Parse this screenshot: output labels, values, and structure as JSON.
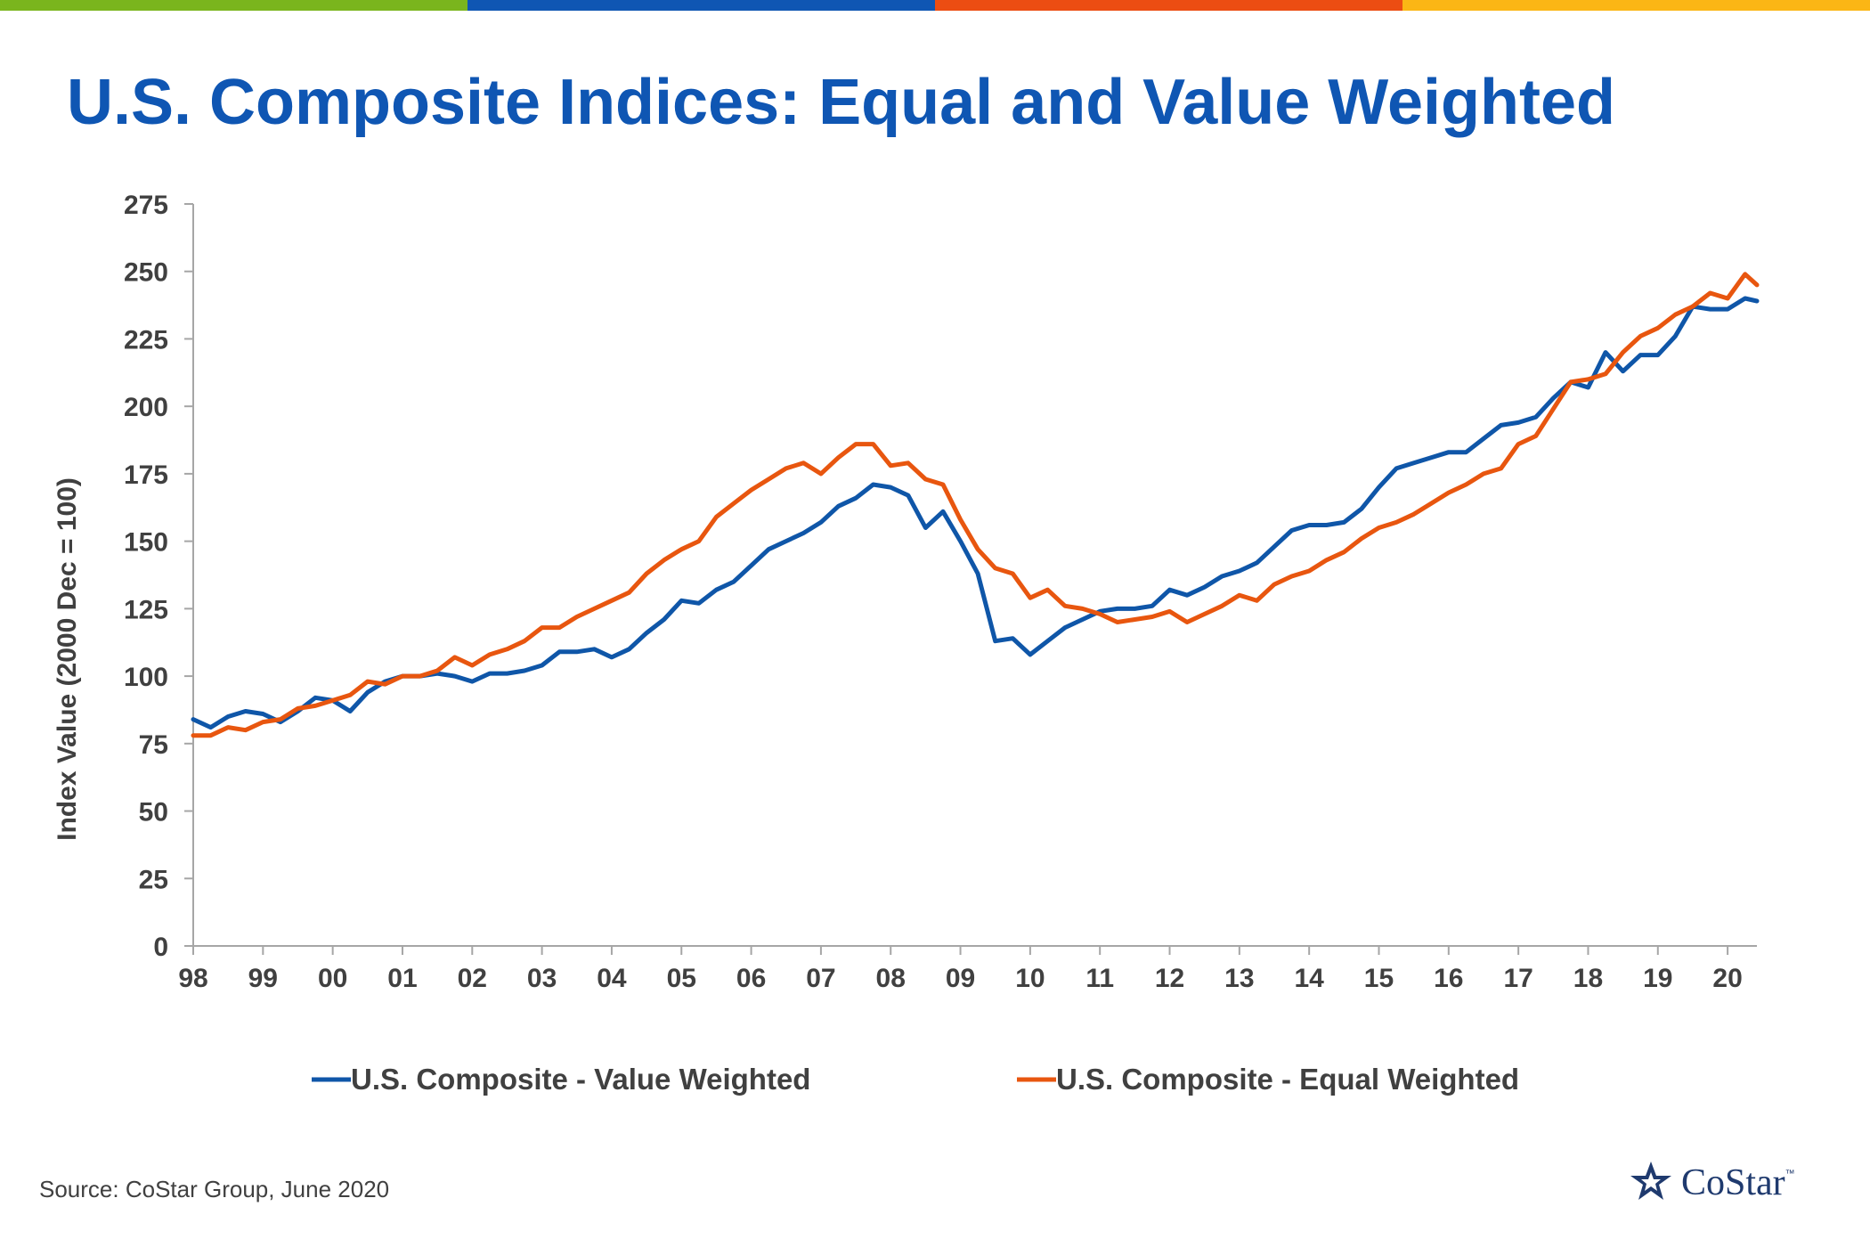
{
  "title": "U.S. Composite Indices: Equal and Value Weighted",
  "source": "Source: CoStar Group, June 2020",
  "logo": {
    "text": "CoStar",
    "tm": "™",
    "icon": "costar-star-icon"
  },
  "colors": {
    "title": "#0f56b3",
    "value_weighted": "#0f56a8",
    "equal_weighted": "#e8560f",
    "top_bar": [
      "#7ab51d",
      "#0f56b3",
      "#ec4d12",
      "#fbb615"
    ]
  },
  "chart_data": {
    "type": "line",
    "ylabel": "Index Value (2000 Dec = 100)",
    "ylim": [
      0,
      275
    ],
    "yticks": [
      0,
      25,
      50,
      75,
      100,
      125,
      150,
      175,
      200,
      225,
      250,
      275
    ],
    "xlim": [
      1998.0,
      2020.42
    ],
    "xticks": [
      {
        "x": 1998,
        "label": "98"
      },
      {
        "x": 1999,
        "label": "99"
      },
      {
        "x": 2000,
        "label": "00"
      },
      {
        "x": 2001,
        "label": "01"
      },
      {
        "x": 2002,
        "label": "02"
      },
      {
        "x": 2003,
        "label": "03"
      },
      {
        "x": 2004,
        "label": "04"
      },
      {
        "x": 2005,
        "label": "05"
      },
      {
        "x": 2006,
        "label": "06"
      },
      {
        "x": 2007,
        "label": "07"
      },
      {
        "x": 2008,
        "label": "08"
      },
      {
        "x": 2009,
        "label": "09"
      },
      {
        "x": 2010,
        "label": "10"
      },
      {
        "x": 2011,
        "label": "11"
      },
      {
        "x": 2012,
        "label": "12"
      },
      {
        "x": 2013,
        "label": "13"
      },
      {
        "x": 2014,
        "label": "14"
      },
      {
        "x": 2015,
        "label": "15"
      },
      {
        "x": 2016,
        "label": "16"
      },
      {
        "x": 2017,
        "label": "17"
      },
      {
        "x": 2018,
        "label": "18"
      },
      {
        "x": 2019,
        "label": "19"
      },
      {
        "x": 2020,
        "label": "20"
      }
    ],
    "grid": false,
    "legend_position": "bottom",
    "series": [
      {
        "name": "U.S. Composite - Value Weighted",
        "color": "#0f56a8",
        "points": [
          [
            1998.0,
            84
          ],
          [
            1998.25,
            81
          ],
          [
            1998.5,
            85
          ],
          [
            1998.75,
            87
          ],
          [
            1999.0,
            86
          ],
          [
            1999.25,
            83
          ],
          [
            1999.5,
            87
          ],
          [
            1999.75,
            92
          ],
          [
            2000.0,
            91
          ],
          [
            2000.25,
            87
          ],
          [
            2000.5,
            94
          ],
          [
            2000.75,
            98
          ],
          [
            2001.0,
            100
          ],
          [
            2001.25,
            100
          ],
          [
            2001.5,
            101
          ],
          [
            2001.75,
            100
          ],
          [
            2002.0,
            98
          ],
          [
            2002.25,
            101
          ],
          [
            2002.5,
            101
          ],
          [
            2002.75,
            102
          ],
          [
            2003.0,
            104
          ],
          [
            2003.25,
            109
          ],
          [
            2003.5,
            109
          ],
          [
            2003.75,
            110
          ],
          [
            2004.0,
            107
          ],
          [
            2004.25,
            110
          ],
          [
            2004.5,
            116
          ],
          [
            2004.75,
            121
          ],
          [
            2005.0,
            128
          ],
          [
            2005.25,
            127
          ],
          [
            2005.5,
            132
          ],
          [
            2005.75,
            135
          ],
          [
            2006.0,
            141
          ],
          [
            2006.25,
            147
          ],
          [
            2006.5,
            150
          ],
          [
            2006.75,
            153
          ],
          [
            2007.0,
            157
          ],
          [
            2007.25,
            163
          ],
          [
            2007.5,
            166
          ],
          [
            2007.75,
            171
          ],
          [
            2008.0,
            170
          ],
          [
            2008.25,
            167
          ],
          [
            2008.5,
            155
          ],
          [
            2008.75,
            161
          ],
          [
            2009.0,
            150
          ],
          [
            2009.25,
            138
          ],
          [
            2009.5,
            113
          ],
          [
            2009.75,
            114
          ],
          [
            2010.0,
            108
          ],
          [
            2010.25,
            113
          ],
          [
            2010.5,
            118
          ],
          [
            2010.75,
            121
          ],
          [
            2011.0,
            124
          ],
          [
            2011.25,
            125
          ],
          [
            2011.5,
            125
          ],
          [
            2011.75,
            126
          ],
          [
            2012.0,
            132
          ],
          [
            2012.25,
            130
          ],
          [
            2012.5,
            133
          ],
          [
            2012.75,
            137
          ],
          [
            2013.0,
            139
          ],
          [
            2013.25,
            142
          ],
          [
            2013.5,
            148
          ],
          [
            2013.75,
            154
          ],
          [
            2014.0,
            156
          ],
          [
            2014.25,
            156
          ],
          [
            2014.5,
            157
          ],
          [
            2014.75,
            162
          ],
          [
            2015.0,
            170
          ],
          [
            2015.25,
            177
          ],
          [
            2015.5,
            179
          ],
          [
            2015.75,
            181
          ],
          [
            2016.0,
            183
          ],
          [
            2016.25,
            183
          ],
          [
            2016.5,
            188
          ],
          [
            2016.75,
            193
          ],
          [
            2017.0,
            194
          ],
          [
            2017.25,
            196
          ],
          [
            2017.5,
            203
          ],
          [
            2017.75,
            209
          ],
          [
            2018.0,
            207
          ],
          [
            2018.25,
            220
          ],
          [
            2018.5,
            213
          ],
          [
            2018.75,
            219
          ],
          [
            2019.0,
            219
          ],
          [
            2019.25,
            226
          ],
          [
            2019.5,
            237
          ],
          [
            2019.75,
            236
          ],
          [
            2020.0,
            236
          ],
          [
            2020.25,
            240
          ],
          [
            2020.42,
            239
          ]
        ]
      },
      {
        "name": "U.S. Composite - Equal Weighted",
        "color": "#e8560f",
        "points": [
          [
            1998.0,
            78
          ],
          [
            1998.25,
            78
          ],
          [
            1998.5,
            81
          ],
          [
            1998.75,
            80
          ],
          [
            1999.0,
            83
          ],
          [
            1999.25,
            84
          ],
          [
            1999.5,
            88
          ],
          [
            1999.75,
            89
          ],
          [
            2000.0,
            91
          ],
          [
            2000.25,
            93
          ],
          [
            2000.5,
            98
          ],
          [
            2000.75,
            97
          ],
          [
            2001.0,
            100
          ],
          [
            2001.25,
            100
          ],
          [
            2001.5,
            102
          ],
          [
            2001.75,
            107
          ],
          [
            2002.0,
            104
          ],
          [
            2002.25,
            108
          ],
          [
            2002.5,
            110
          ],
          [
            2002.75,
            113
          ],
          [
            2003.0,
            118
          ],
          [
            2003.25,
            118
          ],
          [
            2003.5,
            122
          ],
          [
            2003.75,
            125
          ],
          [
            2004.0,
            128
          ],
          [
            2004.25,
            131
          ],
          [
            2004.5,
            138
          ],
          [
            2004.75,
            143
          ],
          [
            2005.0,
            147
          ],
          [
            2005.25,
            150
          ],
          [
            2005.5,
            159
          ],
          [
            2005.75,
            164
          ],
          [
            2006.0,
            169
          ],
          [
            2006.25,
            173
          ],
          [
            2006.5,
            177
          ],
          [
            2006.75,
            179
          ],
          [
            2007.0,
            175
          ],
          [
            2007.25,
            181
          ],
          [
            2007.5,
            186
          ],
          [
            2007.75,
            186
          ],
          [
            2008.0,
            178
          ],
          [
            2008.25,
            179
          ],
          [
            2008.5,
            173
          ],
          [
            2008.75,
            171
          ],
          [
            2009.0,
            158
          ],
          [
            2009.25,
            147
          ],
          [
            2009.5,
            140
          ],
          [
            2009.75,
            138
          ],
          [
            2010.0,
            129
          ],
          [
            2010.25,
            132
          ],
          [
            2010.5,
            126
          ],
          [
            2010.75,
            125
          ],
          [
            2011.0,
            123
          ],
          [
            2011.25,
            120
          ],
          [
            2011.5,
            121
          ],
          [
            2011.75,
            122
          ],
          [
            2012.0,
            124
          ],
          [
            2012.25,
            120
          ],
          [
            2012.5,
            123
          ],
          [
            2012.75,
            126
          ],
          [
            2013.0,
            130
          ],
          [
            2013.25,
            128
          ],
          [
            2013.5,
            134
          ],
          [
            2013.75,
            137
          ],
          [
            2014.0,
            139
          ],
          [
            2014.25,
            143
          ],
          [
            2014.5,
            146
          ],
          [
            2014.75,
            151
          ],
          [
            2015.0,
            155
          ],
          [
            2015.25,
            157
          ],
          [
            2015.5,
            160
          ],
          [
            2015.75,
            164
          ],
          [
            2016.0,
            168
          ],
          [
            2016.25,
            171
          ],
          [
            2016.5,
            175
          ],
          [
            2016.75,
            177
          ],
          [
            2017.0,
            186
          ],
          [
            2017.25,
            189
          ],
          [
            2017.5,
            199
          ],
          [
            2017.75,
            209
          ],
          [
            2018.0,
            210
          ],
          [
            2018.25,
            212
          ],
          [
            2018.5,
            220
          ],
          [
            2018.75,
            226
          ],
          [
            2019.0,
            229
          ],
          [
            2019.25,
            234
          ],
          [
            2019.5,
            237
          ],
          [
            2019.75,
            242
          ],
          [
            2020.0,
            240
          ],
          [
            2020.25,
            249
          ],
          [
            2020.42,
            245
          ]
        ]
      }
    ]
  }
}
